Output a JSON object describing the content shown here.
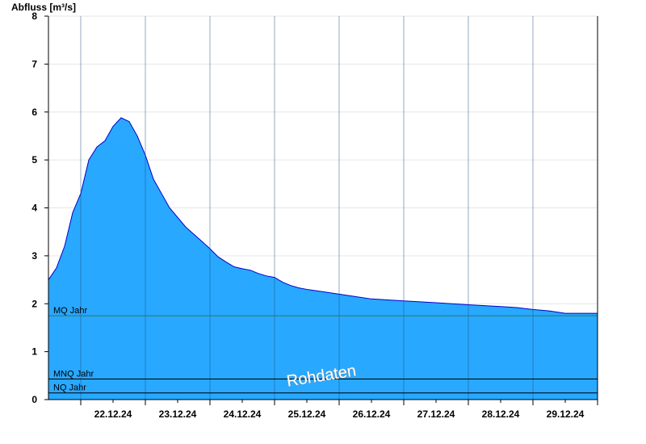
{
  "chart_data": {
    "type": "area",
    "ylabel": "Abfluss [m³/s]",
    "ylim": [
      0,
      8
    ],
    "yticks": [
      "0",
      "1",
      "2",
      "3",
      "4",
      "5",
      "6",
      "7",
      "8"
    ],
    "x_range": [
      "21.12.24 12:00",
      "29.12.24 24:00"
    ],
    "xticks": [
      "22.12.24",
      "23.12.24",
      "24.12.24",
      "25.12.24",
      "26.12.24",
      "27.12.24",
      "28.12.24",
      "29.12.24"
    ],
    "grid": true,
    "fill_color": "#29a8ff",
    "line_color": "#0000cc",
    "series": [
      {
        "x": [
          "21.12.24 12:00",
          "21.12.24 15:00",
          "21.12.24 18:00",
          "21.12.24 21:00",
          "22.12.24 00:00",
          "22.12.24 03:00",
          "22.12.24 06:00",
          "22.12.24 09:00",
          "22.12.24 12:00",
          "22.12.24 15:00",
          "22.12.24 18:00",
          "22.12.24 21:00",
          "23.12.24 00:00",
          "23.12.24 03:00",
          "23.12.24 06:00",
          "23.12.24 09:00",
          "23.12.24 12:00",
          "23.12.24 15:00",
          "23.12.24 18:00",
          "23.12.24 21:00",
          "24.12.24 00:00",
          "24.12.24 03:00",
          "24.12.24 06:00",
          "24.12.24 09:00",
          "24.12.24 12:00",
          "24.12.24 15:00",
          "24.12.24 18:00",
          "24.12.24 21:00",
          "25.12.24 00:00",
          "25.12.24 03:00",
          "25.12.24 06:00",
          "25.12.24 09:00",
          "25.12.24 12:00",
          "25.12.24 18:00",
          "26.12.24 00:00",
          "26.12.24 06:00",
          "26.12.24 12:00",
          "26.12.24 18:00",
          "27.12.24 00:00",
          "27.12.24 06:00",
          "27.12.24 12:00",
          "27.12.24 18:00",
          "28.12.24 00:00",
          "28.12.24 06:00",
          "28.12.24 12:00",
          "28.12.24 18:00",
          "29.12.24 00:00",
          "29.12.24 06:00",
          "29.12.24 12:00",
          "29.12.24 18:00",
          "29.12.24 24:00"
        ],
        "y": [
          2.5,
          2.75,
          3.2,
          3.9,
          4.3,
          5.0,
          5.27,
          5.4,
          5.7,
          5.88,
          5.8,
          5.5,
          5.1,
          4.6,
          4.3,
          4.0,
          3.8,
          3.6,
          3.45,
          3.3,
          3.15,
          2.98,
          2.87,
          2.77,
          2.73,
          2.7,
          2.63,
          2.58,
          2.55,
          2.45,
          2.38,
          2.33,
          2.3,
          2.25,
          2.2,
          2.15,
          2.1,
          2.08,
          2.06,
          2.04,
          2.02,
          2.0,
          1.98,
          1.96,
          1.94,
          1.92,
          1.88,
          1.85,
          1.8,
          1.8,
          1.8
        ]
      }
    ],
    "reference_lines": [
      {
        "label": "MQ Jahr",
        "value": 1.75,
        "color": "#2e7d4f"
      },
      {
        "label": "MNQ Jahr",
        "value": 0.43,
        "color": "#000000"
      },
      {
        "label": "NQ Jahr",
        "value": 0.14,
        "color": "#000000"
      }
    ],
    "watermark": "Rohdaten"
  }
}
